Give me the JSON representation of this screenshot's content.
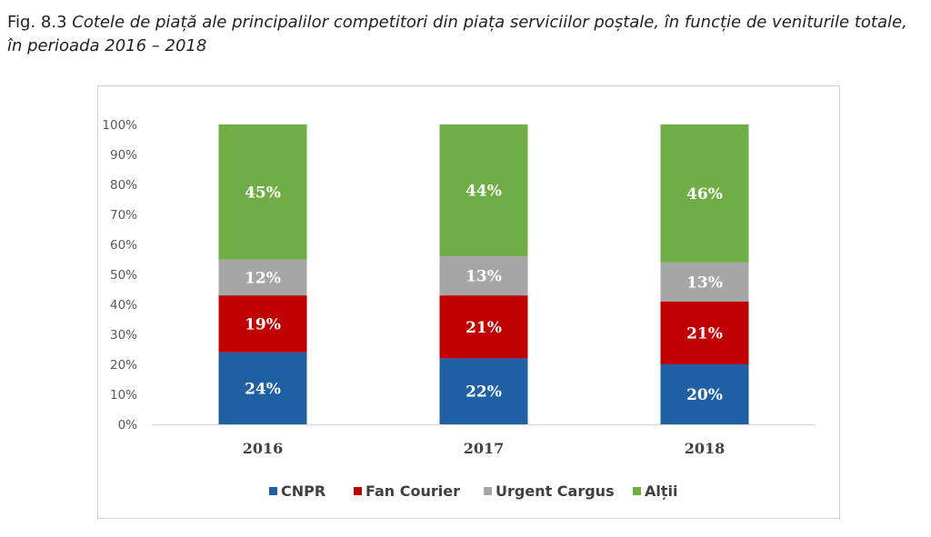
{
  "caption": {
    "prefix": "Fig. 8.3 ",
    "title": "Cotele de piață ale principalilor competitori din piața serviciilor poștale, în funcție de veniturile totale, în perioada 2016 – 2018"
  },
  "chart_data": {
    "type": "bar",
    "stacked": true,
    "percent": true,
    "categories": [
      "2016",
      "2017",
      "2018"
    ],
    "series": [
      {
        "name": "CNPR",
        "color": "#1f5fa3",
        "values": [
          24,
          22,
          20
        ],
        "labels": [
          "24%",
          "22%",
          "20%"
        ]
      },
      {
        "name": "Fan Courier",
        "color": "#c00000",
        "values": [
          19,
          21,
          21
        ],
        "labels": [
          "19%",
          "21%",
          "21%"
        ]
      },
      {
        "name": "Urgent Cargus",
        "color": "#a6a6a6",
        "values": [
          12,
          13,
          13
        ],
        "labels": [
          "12%",
          "13%",
          "13%"
        ]
      },
      {
        "name": "Alții",
        "color": "#70ad47",
        "values": [
          45,
          44,
          46
        ],
        "labels": [
          "45%",
          "44%",
          "46%"
        ]
      }
    ],
    "stack_tops": [
      100,
      100,
      100
    ],
    "ylim": [
      0,
      100
    ],
    "yticks": [
      "0%",
      "10%",
      "20%",
      "30%",
      "40%",
      "50%",
      "60%",
      "70%",
      "80%",
      "90%",
      "100%"
    ],
    "grid": false,
    "legend_position": "bottom"
  }
}
